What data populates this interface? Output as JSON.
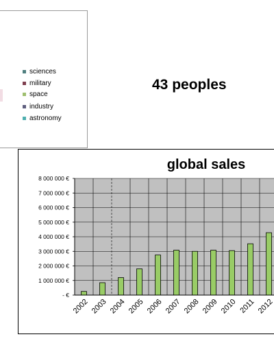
{
  "legend": {
    "items": [
      {
        "label": "sciences",
        "color": "#4f7f7f"
      },
      {
        "label": "military",
        "color": "#7f3f4f"
      },
      {
        "label": "space",
        "color": "#9fbf6f"
      },
      {
        "label": "industry",
        "color": "#5f5f7f"
      },
      {
        "label": "astronomy",
        "color": "#4fafaf"
      }
    ]
  },
  "people_count": "43 peoples",
  "chart_data": {
    "type": "bar",
    "title": "global sales",
    "categories": [
      "2002",
      "2003",
      "2004",
      "2005",
      "2006",
      "2007",
      "2008",
      "2009",
      "2010",
      "2011",
      "2012"
    ],
    "values": [
      250000,
      850000,
      1200000,
      1800000,
      2750000,
      3080000,
      3000000,
      3080000,
      3050000,
      3520000,
      4280000
    ],
    "ylim": [
      0,
      8000000
    ],
    "yticks": [
      "- €",
      "1 000 000 €",
      "2 000 000 €",
      "3 000 000 €",
      "4 000 000 €",
      "5 000 000 €",
      "6 000 000 €",
      "7 000 000 €",
      "8 000 000 €"
    ],
    "grid": true,
    "bar_color": "#99cc66",
    "plot_background": "#c0c0c0"
  }
}
